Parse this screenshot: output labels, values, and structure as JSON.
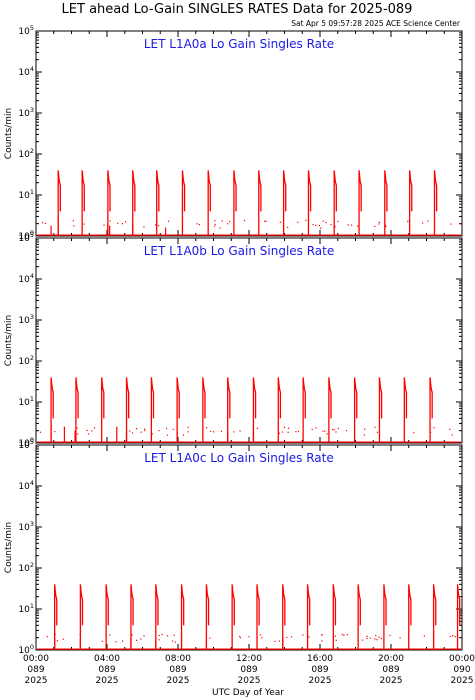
{
  "chart_data": {
    "title": "LET ahead Lo-Gain SINGLES RATES Data for 2025-089",
    "timestamp": "Sat Apr  5 09:57:28 2025 ACE Science Center",
    "xlabel": "UTC Day of Year",
    "x_ticks": [
      {
        "time": "00:00",
        "doy": "089",
        "year": "2025"
      },
      {
        "time": "04:00",
        "doy": "089",
        "year": "2025"
      },
      {
        "time": "08:00",
        "doy": "089",
        "year": "2025"
      },
      {
        "time": "12:00",
        "doy": "089",
        "year": "2025"
      },
      {
        "time": "16:00",
        "doy": "089",
        "year": "2025"
      },
      {
        "time": "20:00",
        "doy": "089",
        "year": "2025"
      },
      {
        "time": "00:00",
        "doy": "090",
        "year": "2025"
      }
    ],
    "xlim_hours": [
      0,
      24
    ],
    "panels": [
      {
        "type": "line",
        "name": "LET L1A0a Lo Gain Singles Rate",
        "ylabel": "Counts/min",
        "yscale": "log",
        "ylim": [
          1,
          100000
        ],
        "color": "#ff0000",
        "pulse_start_hours": [
          1.25,
          2.6,
          4.05,
          5.45,
          6.8,
          8.25,
          9.7,
          11.15,
          12.55,
          13.95,
          15.35,
          16.8,
          18.2,
          19.65,
          21.05,
          22.45
        ],
        "spikes": [
          [
            0.85,
            1.8
          ],
          [
            1.25,
            3
          ],
          [
            4.05,
            2
          ],
          [
            4.15,
            1.8
          ],
          [
            5.45,
            2
          ],
          [
            7.3,
            1.6
          ]
        ]
      },
      {
        "type": "line",
        "name": "LET L1A0b Lo Gain Singles Rate",
        "ylabel": "Counts/min",
        "yscale": "log",
        "ylim": [
          1,
          100000
        ],
        "color": "#ff0000",
        "pulse_start_hours": [
          0.85,
          2.25,
          3.7,
          5.1,
          6.5,
          7.95,
          9.4,
          10.8,
          12.25,
          13.65,
          15.05,
          16.5,
          17.95,
          19.35,
          20.75,
          22.2
        ],
        "spikes": [
          [
            0.85,
            3
          ],
          [
            1.6,
            2.5
          ],
          [
            2.2,
            2
          ],
          [
            4.55,
            2.5
          ],
          [
            5.1,
            2
          ],
          [
            7.95,
            2
          ],
          [
            10.8,
            1.8
          ],
          [
            12.25,
            2
          ]
        ]
      },
      {
        "type": "line",
        "name": "LET L1A0c Lo Gain Singles Rate",
        "ylabel": "Counts/min",
        "yscale": "log",
        "ylim": [
          1,
          100000
        ],
        "color": "#ff0000",
        "pulse_start_hours": [
          1.05,
          2.5,
          3.95,
          5.35,
          6.75,
          8.2,
          9.6,
          11.05,
          12.45,
          13.9,
          15.3,
          16.75,
          18.15,
          19.6,
          21.0,
          22.4,
          23.75
        ],
        "spikes": [
          [
            1.05,
            2
          ],
          [
            2.5,
            1.8
          ],
          [
            5.35,
            2
          ],
          [
            6.75,
            2
          ],
          [
            9.6,
            1.8
          ],
          [
            13.9,
            2
          ],
          [
            22.4,
            3
          ]
        ]
      }
    ]
  }
}
